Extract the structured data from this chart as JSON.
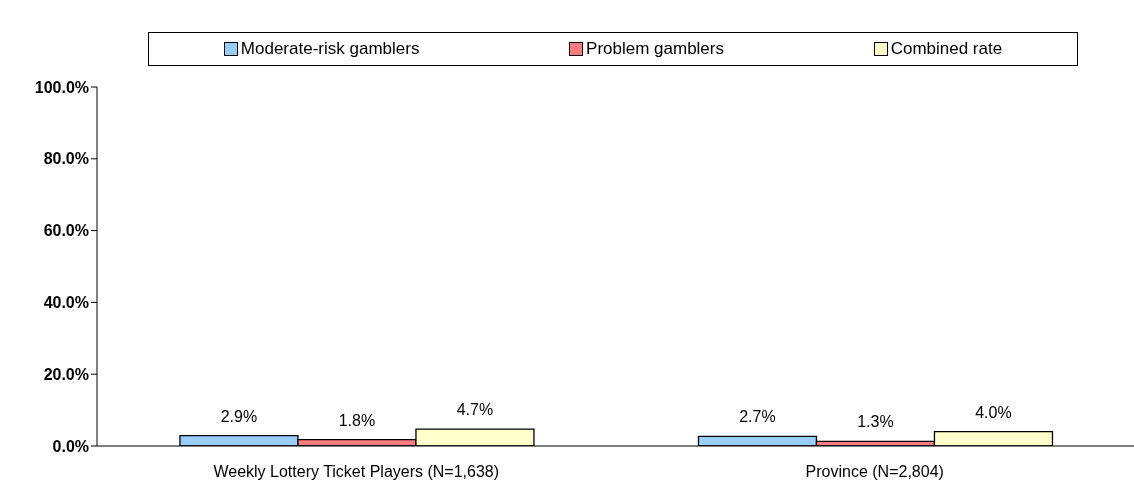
{
  "chart_data": {
    "type": "bar",
    "categories": [
      "Weekly Lottery Ticket Players (N=1,638)",
      "Province (N=2,804)"
    ],
    "series": [
      {
        "name": "Moderate-risk gamblers",
        "color": "#99ccff",
        "values": [
          2.9,
          2.7
        ],
        "value_labels": [
          "2.9%",
          "2.7%"
        ]
      },
      {
        "name": "Problem gamblers",
        "color": "#ff7c80",
        "values": [
          1.8,
          1.3
        ],
        "value_labels": [
          "1.8%",
          "1.3%"
        ]
      },
      {
        "name": "Combined rate",
        "color": "#ffffcc",
        "values": [
          4.7,
          4.0
        ],
        "value_labels": [
          "4.7%",
          "4.0%"
        ]
      }
    ],
    "ylim": [
      0,
      100
    ],
    "yticks": [
      {
        "value": 0,
        "label": "0.0%"
      },
      {
        "value": 20,
        "label": "20.0%"
      },
      {
        "value": 40,
        "label": "40.0%"
      },
      {
        "value": 60,
        "label": "60.0%"
      },
      {
        "value": 80,
        "label": "80.0%"
      },
      {
        "value": 100,
        "label": "100.0%"
      }
    ],
    "grid": false,
    "legend": "top"
  }
}
